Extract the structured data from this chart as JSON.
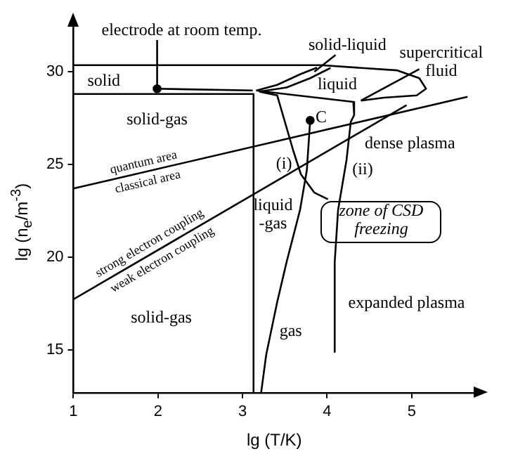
{
  "chart_data": {
    "type": "line",
    "xlabel": "lg (T/K)",
    "ylabel": "lg (n$_{e}$/m$^{-3}$)",
    "xlim": [
      1,
      5.75
    ],
    "ylim": [
      12.7,
      32.5
    ],
    "xticks": [
      1,
      2,
      3,
      4,
      5
    ],
    "yticks": [
      15,
      20,
      25,
      30
    ],
    "grid": false,
    "legend": false,
    "marker": "none",
    "line_style": "solid",
    "series": [
      {
        "color": "#000000",
        "x": [
          1,
          3.93,
          4.83,
          5.09,
          5.17,
          5.06,
          4.67,
          4.4
        ],
        "values": [
          30.35,
          30.35,
          30.07,
          29.65,
          29.08,
          28.72,
          28.6,
          28.44
        ]
      },
      {
        "color": "#000000",
        "x": [
          1,
          3.13,
          3.13
        ],
        "values": [
          28.8,
          28.8,
          12.7
        ]
      },
      {
        "color": "#000000",
        "x": [
          3.16,
          3.41,
          3.68,
          3.88
        ],
        "values": [
          28.98,
          29.29,
          29.86,
          30.22
        ]
      },
      {
        "color": "#000000",
        "x": [
          3.22,
          3.52,
          3.8,
          4.04
        ],
        "values": [
          28.94,
          29.15,
          29.65,
          30.2
        ]
      },
      {
        "color": "#000000",
        "x": [
          1,
          5.66
        ],
        "values": [
          23.7,
          28.65
        ]
      },
      {
        "color": "#000000",
        "x": [
          1,
          4.94
        ],
        "values": [
          17.73,
          28.2
        ]
      },
      {
        "color": "#000000",
        "x": [
          3.8,
          3.76,
          3.68,
          3.52,
          3.41,
          3.28,
          3.22
        ],
        "values": [
          27.38,
          24.68,
          22.55,
          19.72,
          17.59,
          14.75,
          12.7
        ]
      },
      {
        "color": "#000000",
        "x": [
          3.2,
          3.41,
          3.6,
          3.69,
          3.85,
          4.01
        ],
        "values": [
          28.92,
          28.72,
          25.74,
          24.47,
          23.48,
          23.12
        ]
      },
      {
        "color": "#000000",
        "x": [
          3.18,
          4.31,
          4.32,
          4.28,
          4.23,
          4.13,
          4.09,
          4.09
        ],
        "values": [
          28.97,
          28.37,
          27.66,
          27.3,
          25.25,
          22.55,
          19.72,
          14.9
        ]
      },
      {
        "color": "#000000",
        "x": [
          1.99,
          3.12
        ],
        "values": [
          29.08,
          28.99
        ]
      },
      {
        "color": "#000000",
        "x": [
          1.99,
          1.99
        ],
        "values": [
          29.2,
          31.7
        ]
      },
      {
        "color": "#000000",
        "x": [
          3.85,
          4.1
        ],
        "values": [
          30.0,
          30.9
        ]
      },
      {
        "color": "#000000",
        "x": [
          4.4,
          5.09
        ],
        "values": [
          28.44,
          30.14
        ]
      },
      {
        "type": "scatter",
        "color": "#000000",
        "marker": "circle",
        "x": [
          1.99,
          3.8
        ],
        "values": [
          29.08,
          27.38
        ]
      }
    ],
    "annotations": [
      "electrode at room temp.",
      "solid",
      "solid-liquid",
      "supercritical\nfluid",
      "liquid",
      "solid-gas",
      "C",
      "dense plasma",
      "quantum area",
      "classical area",
      "(i)",
      "(ii)",
      "liquid\n-gas",
      "zone of CSD\nfreezing",
      "strong electron coupling",
      "weak electron coupling",
      "expanded plasma",
      "solid-gas",
      "gas"
    ]
  }
}
